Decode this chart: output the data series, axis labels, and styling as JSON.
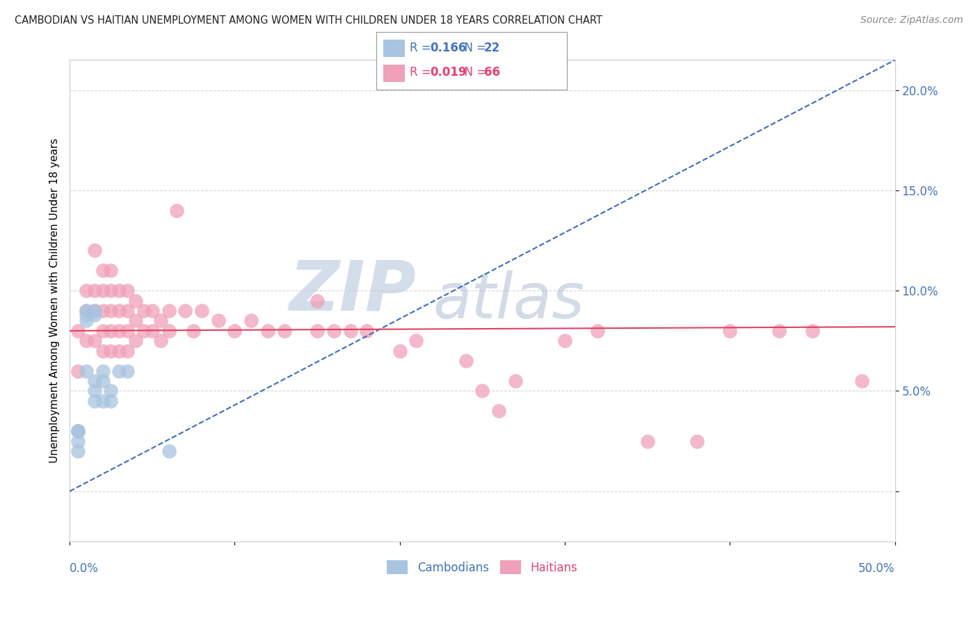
{
  "title": "CAMBODIAN VS HAITIAN UNEMPLOYMENT AMONG WOMEN WITH CHILDREN UNDER 18 YEARS CORRELATION CHART",
  "source": "Source: ZipAtlas.com",
  "ylabel": "Unemployment Among Women with Children Under 18 years",
  "y_ticks": [
    0.0,
    0.05,
    0.1,
    0.15,
    0.2
  ],
  "y_tick_labels": [
    "",
    "5.0%",
    "10.0%",
    "15.0%",
    "20.0%"
  ],
  "x_min": 0.0,
  "x_max": 0.5,
  "y_min": -0.025,
  "y_max": 0.215,
  "cambodian_R": 0.166,
  "cambodian_N": 22,
  "haitian_R": 0.019,
  "haitian_N": 66,
  "cambodian_color": "#a8c4e0",
  "haitian_color": "#f0a0b8",
  "cambodian_trend_color": "#3a6bc4",
  "haitian_trend_color": "#e04060",
  "watermark_zip": "ZIP",
  "watermark_atlas": "atlas",
  "watermark_color_zip": "#c8d8ec",
  "watermark_color_atlas": "#c0cce0",
  "cambodian_x": [
    0.005,
    0.005,
    0.005,
    0.005,
    0.005,
    0.01,
    0.01,
    0.01,
    0.01,
    0.015,
    0.015,
    0.015,
    0.015,
    0.015,
    0.02,
    0.02,
    0.02,
    0.025,
    0.025,
    0.03,
    0.035,
    0.06
  ],
  "cambodian_y": [
    0.03,
    0.03,
    0.03,
    0.025,
    0.02,
    0.09,
    0.088,
    0.085,
    0.06,
    0.09,
    0.088,
    0.055,
    0.05,
    0.045,
    0.06,
    0.055,
    0.045,
    0.05,
    0.045,
    0.06,
    0.06,
    0.02
  ],
  "haitian_x": [
    0.005,
    0.005,
    0.01,
    0.01,
    0.01,
    0.015,
    0.015,
    0.015,
    0.015,
    0.02,
    0.02,
    0.02,
    0.02,
    0.02,
    0.025,
    0.025,
    0.025,
    0.025,
    0.025,
    0.03,
    0.03,
    0.03,
    0.03,
    0.035,
    0.035,
    0.035,
    0.035,
    0.04,
    0.04,
    0.04,
    0.045,
    0.045,
    0.05,
    0.05,
    0.055,
    0.055,
    0.06,
    0.06,
    0.065,
    0.07,
    0.075,
    0.08,
    0.09,
    0.1,
    0.11,
    0.12,
    0.13,
    0.15,
    0.15,
    0.16,
    0.17,
    0.18,
    0.2,
    0.21,
    0.24,
    0.25,
    0.26,
    0.27,
    0.3,
    0.32,
    0.35,
    0.38,
    0.4,
    0.43,
    0.45,
    0.48
  ],
  "haitian_y": [
    0.08,
    0.06,
    0.1,
    0.09,
    0.075,
    0.12,
    0.1,
    0.09,
    0.075,
    0.11,
    0.1,
    0.09,
    0.08,
    0.07,
    0.11,
    0.1,
    0.09,
    0.08,
    0.07,
    0.1,
    0.09,
    0.08,
    0.07,
    0.1,
    0.09,
    0.08,
    0.07,
    0.095,
    0.085,
    0.075,
    0.09,
    0.08,
    0.09,
    0.08,
    0.085,
    0.075,
    0.09,
    0.08,
    0.14,
    0.09,
    0.08,
    0.09,
    0.085,
    0.08,
    0.085,
    0.08,
    0.08,
    0.095,
    0.08,
    0.08,
    0.08,
    0.08,
    0.07,
    0.075,
    0.065,
    0.05,
    0.04,
    0.055,
    0.075,
    0.08,
    0.025,
    0.025,
    0.08,
    0.08,
    0.08,
    0.055
  ],
  "trend_cambodian_x0": 0.0,
  "trend_cambodian_y0": 0.0,
  "trend_cambodian_x1": 0.5,
  "trend_cambodian_y1": 0.215,
  "trend_haitian_x0": 0.0,
  "trend_haitian_y0": 0.08,
  "trend_haitian_x1": 0.5,
  "trend_haitian_y1": 0.082
}
